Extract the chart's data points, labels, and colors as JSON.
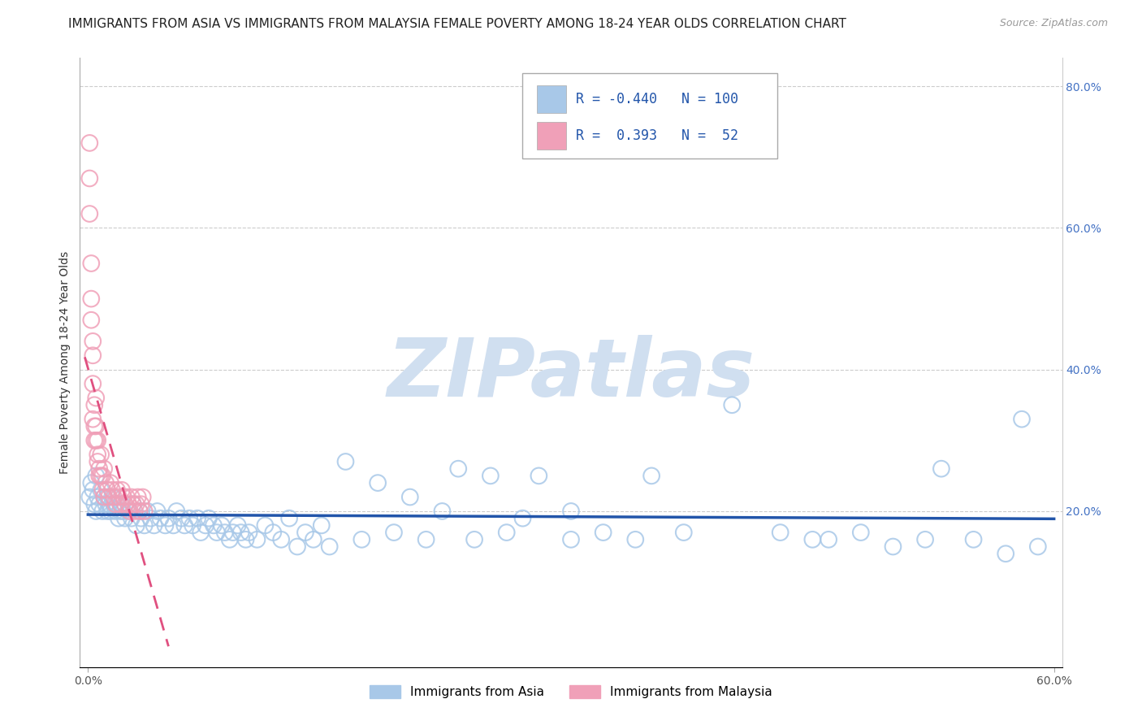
{
  "title": "IMMIGRANTS FROM ASIA VS IMMIGRANTS FROM MALAYSIA FEMALE POVERTY AMONG 18-24 YEAR OLDS CORRELATION CHART",
  "source": "Source: ZipAtlas.com",
  "ylabel": "Female Poverty Among 18-24 Year Olds",
  "xlim": [
    -0.005,
    0.605
  ],
  "ylim": [
    -0.02,
    0.84
  ],
  "xticks": [
    0.0,
    0.6
  ],
  "xticklabels": [
    "0.0%",
    "60.0%"
  ],
  "yticks_right": [
    0.2,
    0.4,
    0.6,
    0.8
  ],
  "yticklabels_right": [
    "20.0%",
    "40.0%",
    "60.0%",
    "80.0%"
  ],
  "grid_yticks": [
    0.2,
    0.4,
    0.6,
    0.8
  ],
  "legend_labels": [
    "Immigrants from Asia",
    "Immigrants from Malaysia"
  ],
  "legend_R": [
    -0.44,
    0.393
  ],
  "legend_N": [
    100,
    52
  ],
  "blue_color": "#A8C8E8",
  "pink_color": "#F0A0B8",
  "blue_line_color": "#2255AA",
  "pink_line_color": "#E05080",
  "watermark": "ZIPatlas",
  "watermark_color": "#D0DFF0",
  "title_fontsize": 11,
  "axis_label_fontsize": 10,
  "tick_fontsize": 10,
  "asia_x": [
    0.001,
    0.002,
    0.003,
    0.004,
    0.005,
    0.005,
    0.006,
    0.007,
    0.008,
    0.009,
    0.01,
    0.011,
    0.012,
    0.012,
    0.013,
    0.014,
    0.015,
    0.016,
    0.017,
    0.018,
    0.019,
    0.02,
    0.021,
    0.022,
    0.023,
    0.025,
    0.027,
    0.028,
    0.03,
    0.032,
    0.033,
    0.035,
    0.037,
    0.039,
    0.041,
    0.043,
    0.045,
    0.048,
    0.05,
    0.053,
    0.055,
    0.058,
    0.06,
    0.063,
    0.065,
    0.068,
    0.07,
    0.073,
    0.075,
    0.078,
    0.08,
    0.083,
    0.085,
    0.088,
    0.09,
    0.093,
    0.095,
    0.098,
    0.1,
    0.105,
    0.11,
    0.115,
    0.12,
    0.125,
    0.13,
    0.135,
    0.14,
    0.145,
    0.15,
    0.16,
    0.17,
    0.18,
    0.19,
    0.2,
    0.21,
    0.22,
    0.23,
    0.24,
    0.25,
    0.26,
    0.27,
    0.28,
    0.3,
    0.32,
    0.34,
    0.37,
    0.4,
    0.43,
    0.46,
    0.5,
    0.52,
    0.53,
    0.55,
    0.57,
    0.58,
    0.59,
    0.3,
    0.35,
    0.45,
    0.48
  ],
  "asia_y": [
    0.22,
    0.24,
    0.23,
    0.21,
    0.25,
    0.2,
    0.22,
    0.21,
    0.23,
    0.2,
    0.22,
    0.21,
    0.2,
    0.22,
    0.21,
    0.2,
    0.22,
    0.21,
    0.2,
    0.21,
    0.19,
    0.2,
    0.21,
    0.2,
    0.19,
    0.2,
    0.19,
    0.21,
    0.18,
    0.2,
    0.19,
    0.18,
    0.2,
    0.19,
    0.18,
    0.2,
    0.19,
    0.18,
    0.19,
    0.18,
    0.2,
    0.19,
    0.18,
    0.19,
    0.18,
    0.19,
    0.17,
    0.18,
    0.19,
    0.18,
    0.17,
    0.18,
    0.17,
    0.16,
    0.17,
    0.18,
    0.17,
    0.16,
    0.17,
    0.16,
    0.18,
    0.17,
    0.16,
    0.19,
    0.15,
    0.17,
    0.16,
    0.18,
    0.15,
    0.27,
    0.16,
    0.24,
    0.17,
    0.22,
    0.16,
    0.2,
    0.26,
    0.16,
    0.25,
    0.17,
    0.19,
    0.25,
    0.16,
    0.17,
    0.16,
    0.17,
    0.35,
    0.17,
    0.16,
    0.15,
    0.16,
    0.26,
    0.16,
    0.14,
    0.33,
    0.15,
    0.2,
    0.25,
    0.16,
    0.17
  ],
  "malaysia_x": [
    0.001,
    0.001,
    0.002,
    0.002,
    0.003,
    0.003,
    0.003,
    0.004,
    0.004,
    0.005,
    0.005,
    0.006,
    0.006,
    0.007,
    0.007,
    0.008,
    0.008,
    0.009,
    0.009,
    0.01,
    0.01,
    0.011,
    0.012,
    0.013,
    0.014,
    0.015,
    0.016,
    0.017,
    0.018,
    0.019,
    0.02,
    0.021,
    0.022,
    0.023,
    0.024,
    0.025,
    0.026,
    0.027,
    0.028,
    0.029,
    0.03,
    0.031,
    0.032,
    0.033,
    0.034,
    0.035,
    0.001,
    0.002,
    0.003,
    0.004,
    0.005,
    0.006
  ],
  "malaysia_y": [
    0.72,
    0.62,
    0.55,
    0.5,
    0.44,
    0.38,
    0.33,
    0.35,
    0.3,
    0.36,
    0.3,
    0.3,
    0.28,
    0.26,
    0.25,
    0.28,
    0.25,
    0.25,
    0.23,
    0.26,
    0.22,
    0.24,
    0.23,
    0.22,
    0.24,
    0.23,
    0.22,
    0.21,
    0.23,
    0.22,
    0.21,
    0.23,
    0.22,
    0.21,
    0.22,
    0.21,
    0.2,
    0.22,
    0.21,
    0.2,
    0.21,
    0.22,
    0.2,
    0.21,
    0.22,
    0.2,
    0.67,
    0.47,
    0.42,
    0.32,
    0.32,
    0.27
  ]
}
